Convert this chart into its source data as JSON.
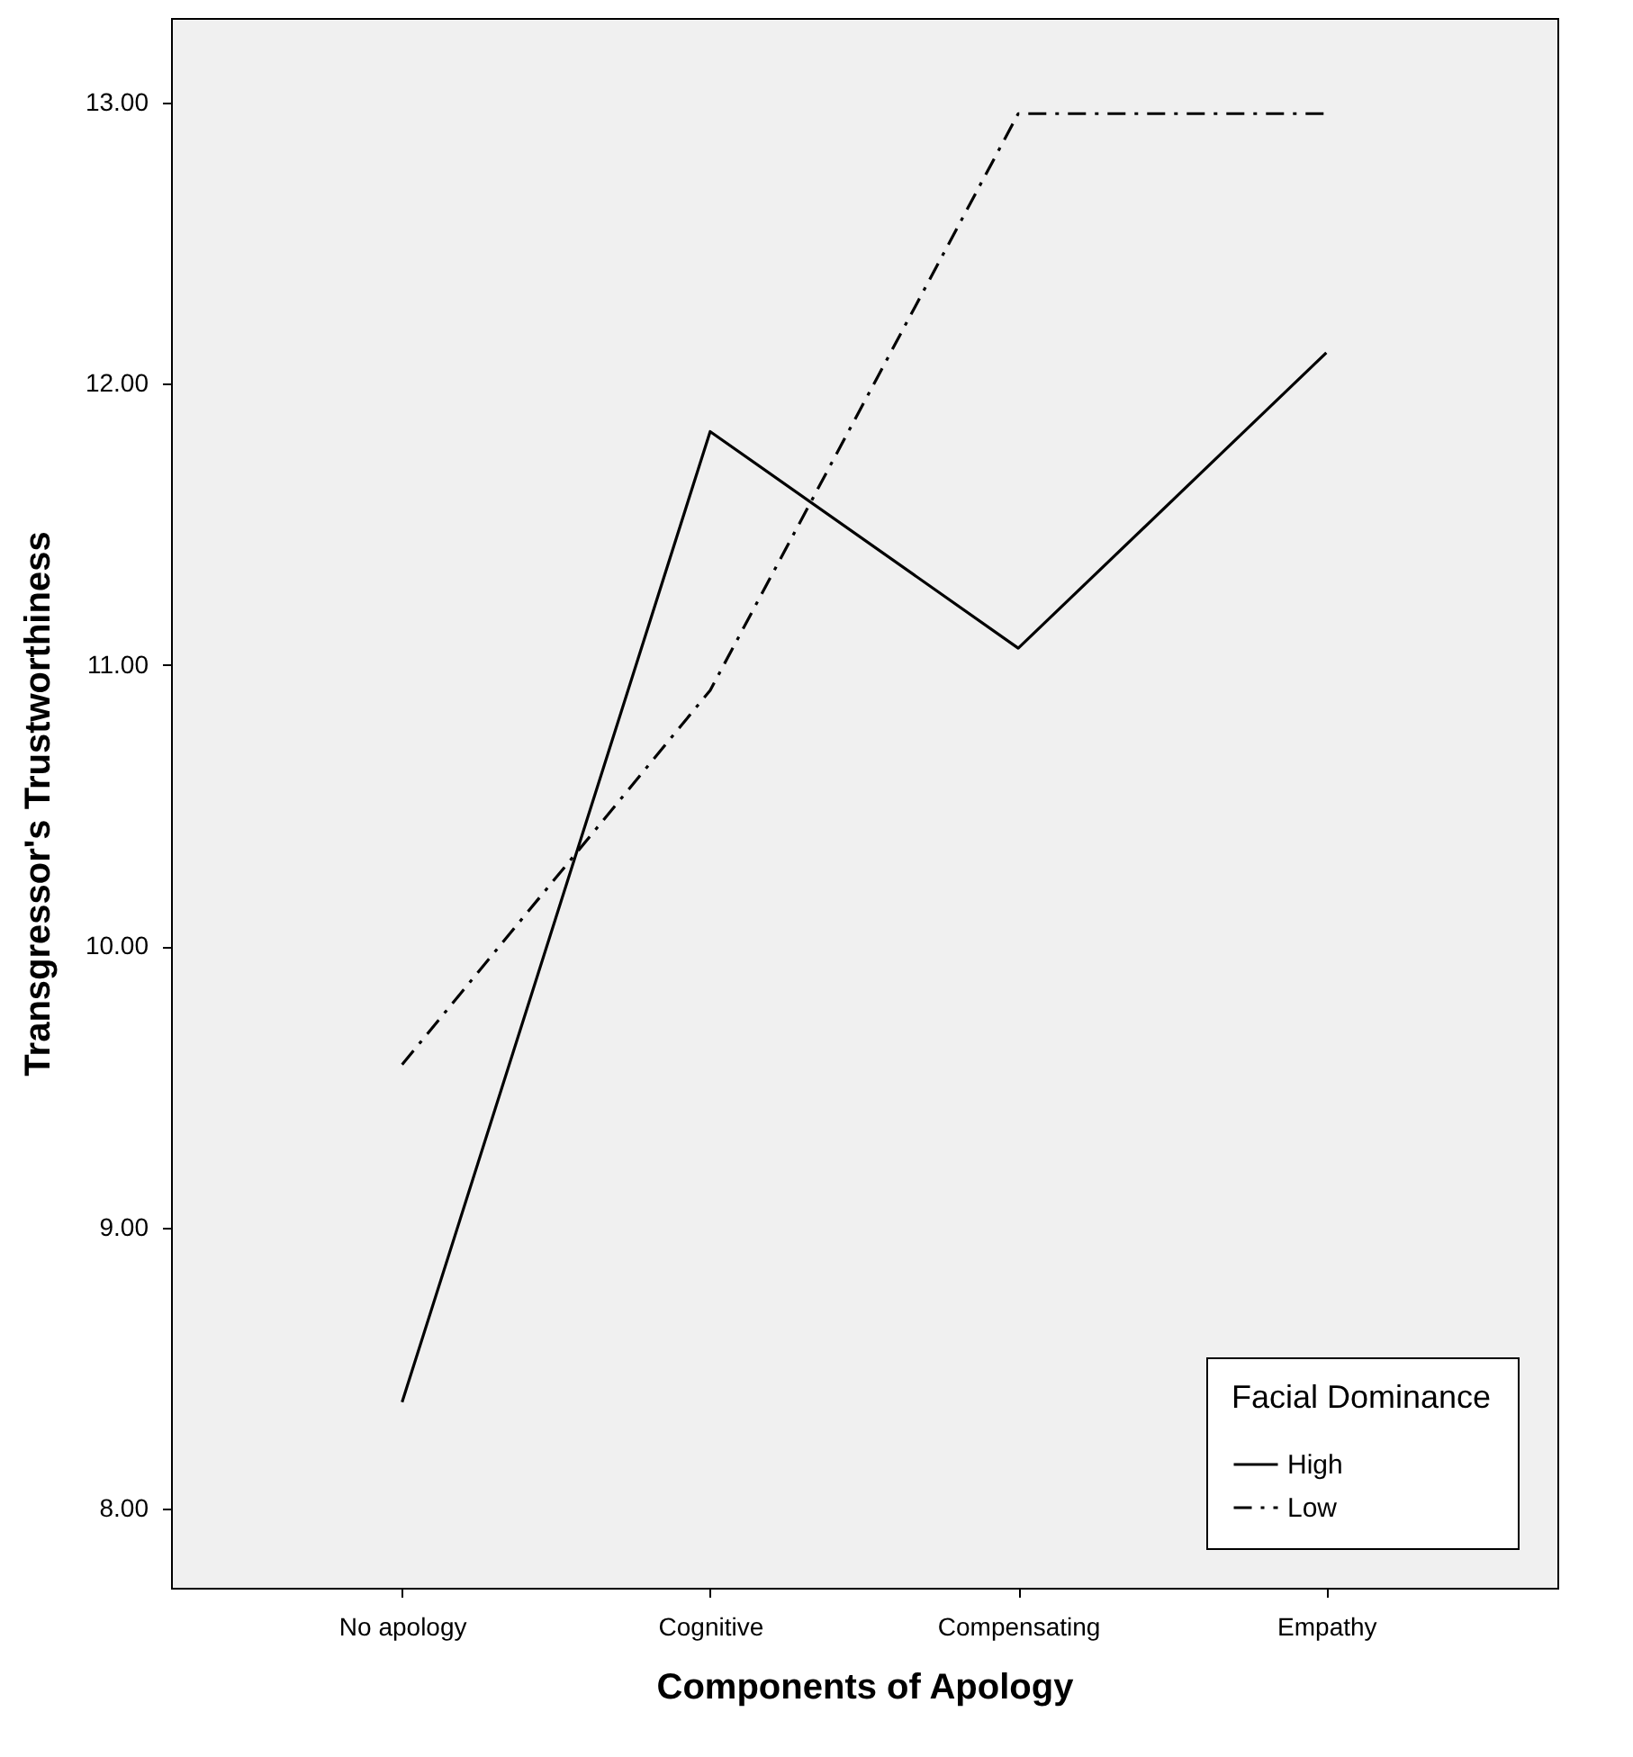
{
  "chart_data": {
    "type": "line",
    "xlabel": "Components of Apology",
    "ylabel": "Transgressor's Trustworthiness",
    "legend_title": "Facial Dominance",
    "legend": "bottom right",
    "grid": false,
    "marker": "none",
    "categories": [
      "No apology",
      "Cognitive",
      "Compensating",
      "Empathy"
    ],
    "ylim": [
      7.72,
      13.3
    ],
    "yticks": [
      {
        "value": 8,
        "label": "8.00"
      },
      {
        "value": 9,
        "label": "9.00"
      },
      {
        "value": 10,
        "label": "10.00"
      },
      {
        "value": 11,
        "label": "11.00"
      },
      {
        "value": 12,
        "label": "12.00"
      },
      {
        "value": 13,
        "label": "13.00"
      }
    ],
    "series": [
      {
        "name": "High",
        "color": "#000000",
        "line_style": "solid",
        "values": [
          8.38,
          11.83,
          11.06,
          12.11
        ]
      },
      {
        "name": "Low",
        "color": "#000000",
        "line_style": "dashed",
        "values": [
          9.58,
          10.91,
          12.96,
          12.96
        ]
      }
    ]
  }
}
